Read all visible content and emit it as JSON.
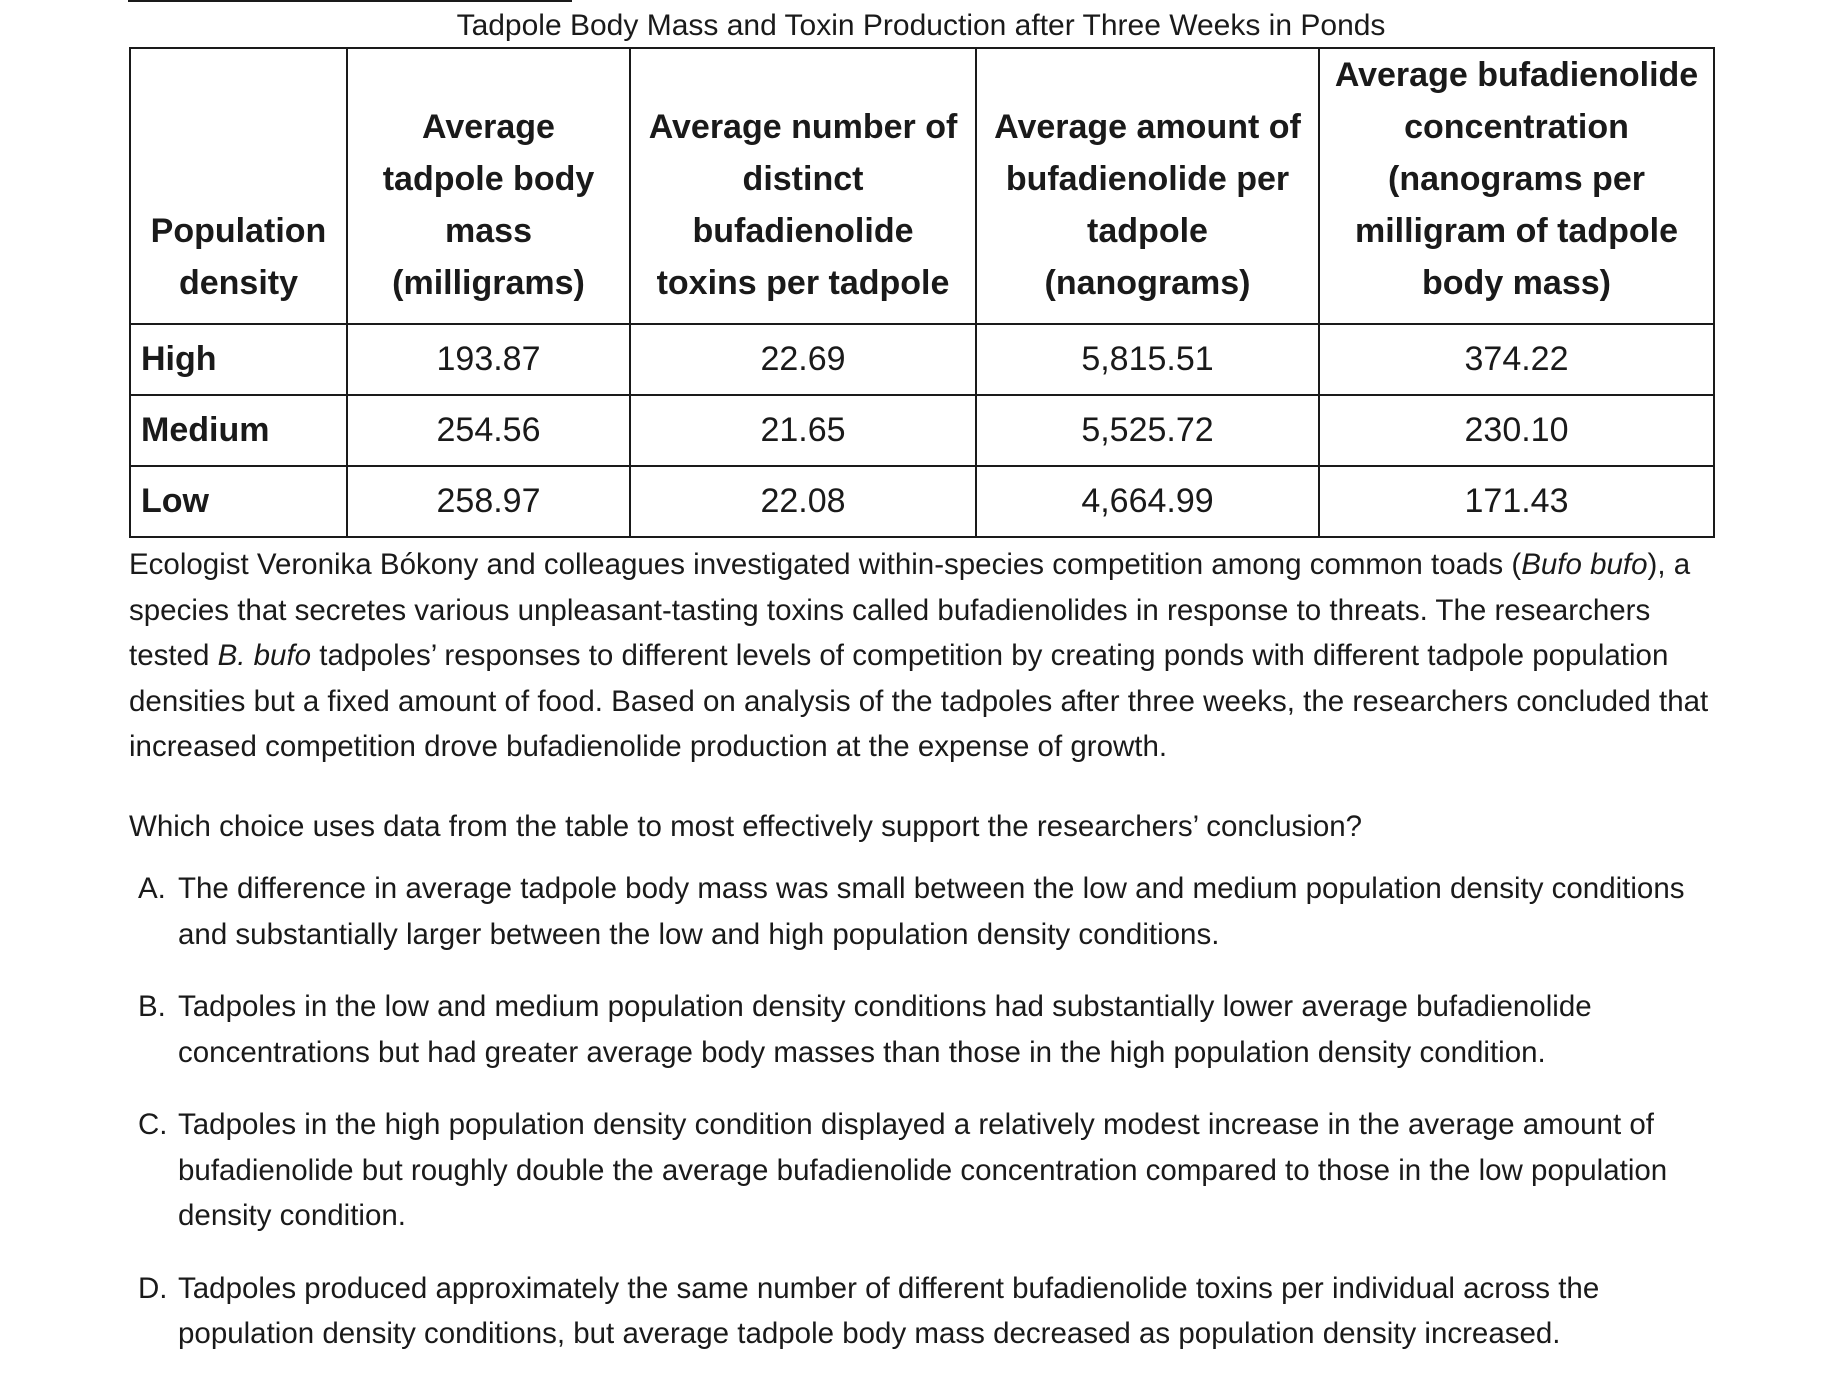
{
  "table": {
    "title": "Tadpole Body Mass and Toxin Production after Three Weeks in Ponds",
    "headers": [
      "Population density",
      "Average tadpole body mass (milligrams)",
      "Average number of distinct bufadienolide toxins per tadpole",
      "Average amount of bufadienolide per tadpole (nanograms)",
      "Average bufadienolide concentration (nanograms per milligram of tadpole body mass)"
    ],
    "rows": [
      [
        "High",
        "193.87",
        "22.69",
        "5,815.51",
        "374.22"
      ],
      [
        "Medium",
        "254.56",
        "21.65",
        "5,525.72",
        "230.10"
      ],
      [
        "Low",
        "258.97",
        "22.08",
        "4,664.99",
        "171.43"
      ]
    ]
  },
  "passage": {
    "part1": "Ecologist Veronika Bókony and colleagues investigated within-species competition among common toads (",
    "italic1": "Bufo bufo",
    "part2": "), a species that secretes various unpleasant-tasting toxins called bufadienolides in response to threats. The researchers tested ",
    "italic2": "B. bufo",
    "part3": " tadpoles’ responses to different levels of competition by creating ponds with different tadpole population densities but a fixed amount of food. Based on analysis of the tadpoles after three weeks, the researchers concluded that increased competition drove bufadienolide production at the expense of growth."
  },
  "question": "Which choice uses data from the table to most effectively support the researchers’ conclusion?",
  "choices": [
    {
      "letter": "A.",
      "text": "The difference in average tadpole body mass was small between the low and medium population density conditions and substantially larger between the low and high population density conditions."
    },
    {
      "letter": "B.",
      "text": "Tadpoles in the low and medium population density conditions had substantially lower average bufadienolide concentrations but had greater average body masses than those in the high population density condition."
    },
    {
      "letter": "C.",
      "text": "Tadpoles in the high population density condition displayed a relatively modest increase in the average amount of bufadienolide but roughly double the average bufadienolide concentration compared to those in the low population density condition."
    },
    {
      "letter": "D.",
      "text": "Tadpoles produced approximately the same number of different bufadienolide toxins per individual across the population density conditions, but average tadpole body mass decreased as population density increased."
    }
  ]
}
